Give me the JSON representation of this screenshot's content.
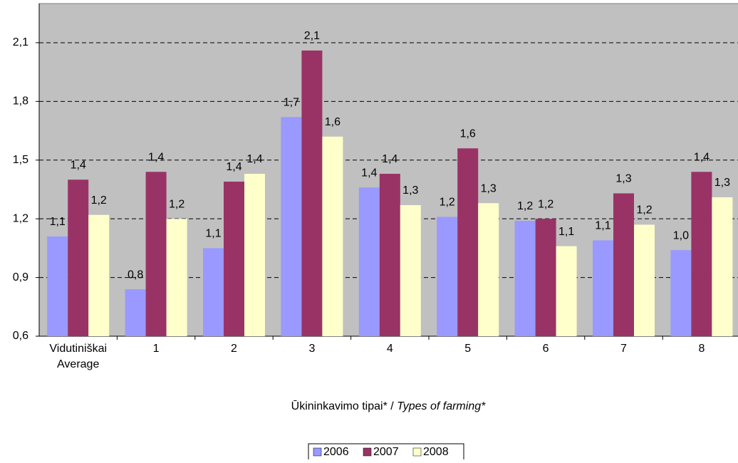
{
  "chart_data": {
    "type": "bar",
    "categories": [
      [
        "Vidutiniškai",
        "Average"
      ],
      "1",
      "2",
      "3",
      "4",
      "5",
      "6",
      "7",
      "8"
    ],
    "x_label": [
      "Ūkininkavimo tipai* / ",
      "Types of farming*"
    ],
    "series": [
      {
        "name": "2006",
        "color": "#9999ff",
        "values": [
          1.11,
          0.84,
          1.05,
          1.72,
          1.36,
          1.21,
          1.19,
          1.09,
          1.04
        ],
        "value_labels": [
          "1,1",
          "0,8",
          "1,1",
          "1,7",
          "1,4",
          "1,2",
          "1,2",
          "1,1",
          "1,0"
        ]
      },
      {
        "name": "2007",
        "color": "#993366",
        "values": [
          1.4,
          1.44,
          1.39,
          2.06,
          1.43,
          1.56,
          1.2,
          1.33,
          1.44
        ],
        "value_labels": [
          "1,4",
          "1,4",
          "1,4",
          "2,1",
          "1,4",
          "1,6",
          "1,2",
          "1,3",
          "1,4"
        ]
      },
      {
        "name": "2008",
        "color": "#ffffcc",
        "values": [
          1.22,
          1.2,
          1.43,
          1.62,
          1.27,
          1.28,
          1.06,
          1.17,
          1.31
        ],
        "value_labels": [
          "1,2",
          "1,2",
          "1,4",
          "1,6",
          "1,3",
          "1,3",
          "1,1",
          "1,2",
          "1,3"
        ]
      }
    ],
    "ylim": [
      0.6,
      2.3
    ],
    "yticks": [
      {
        "value": 0.6,
        "label": "0,6"
      },
      {
        "value": 0.9,
        "label": "0,9"
      },
      {
        "value": 1.2,
        "label": "1,2"
      },
      {
        "value": 1.5,
        "label": "1,5"
      },
      {
        "value": 1.8,
        "label": "1,8"
      },
      {
        "value": 2.1,
        "label": "2,1"
      }
    ],
    "grid": true,
    "legend": "bottom"
  }
}
